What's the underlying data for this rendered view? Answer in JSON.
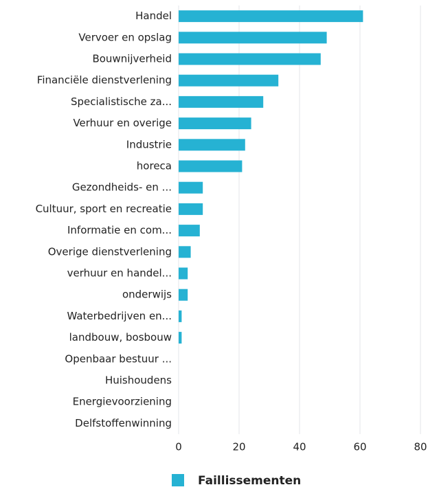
{
  "chart_data": {
    "type": "hbar",
    "categories": [
      "Handel",
      "Vervoer en opslag",
      "Bouwnijverheid",
      "Financiële dienstverlening",
      "Specialistische za...",
      "Verhuur en overige",
      "Industrie",
      "horeca",
      "Gezondheids- en ...",
      "Cultuur, sport en recreatie",
      "Informatie en com...",
      "Overige dienstverlening",
      "verhuur en handel...",
      "onderwijs",
      "Waterbedrijven en...",
      "landbouw, bosbouw",
      "Openbaar bestuur ...",
      "Huishoudens",
      "Energievoorziening",
      "Delfstoffenwinning"
    ],
    "series": [
      {
        "name": "Faillissementen",
        "color": "#26b2d3",
        "values": [
          61,
          49,
          47,
          33,
          28,
          24,
          22,
          21,
          8,
          8,
          7,
          4,
          3,
          3,
          1,
          1,
          0,
          0,
          0,
          0
        ]
      }
    ],
    "xlim": [
      0,
      80
    ],
    "xticks": [
      0,
      20,
      40,
      60,
      80
    ],
    "grid": true
  }
}
